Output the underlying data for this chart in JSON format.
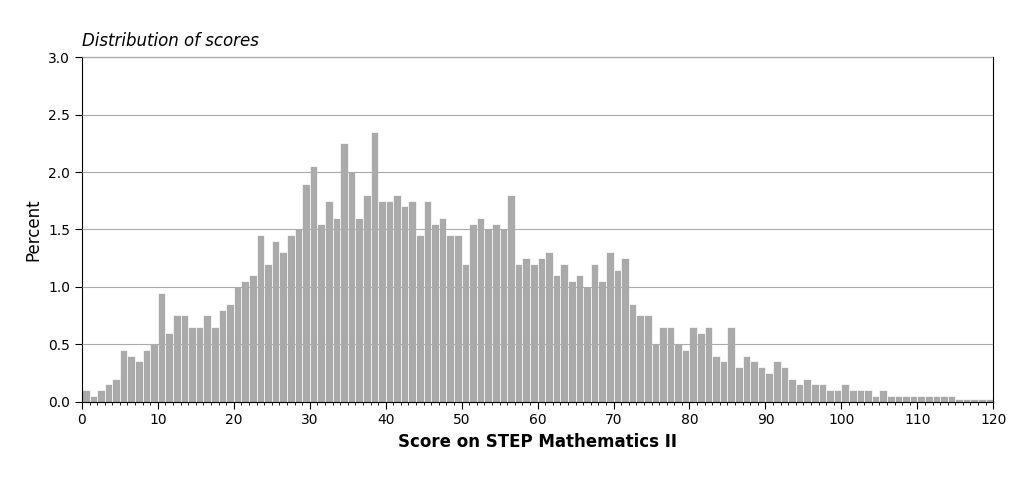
{
  "title": "Distribution of scores",
  "xlabel": "Score on STEP Mathematics II",
  "ylabel": "Percent",
  "bar_color": "#aaaaaa",
  "bar_edgecolor": "#ffffff",
  "xlim": [
    0,
    120
  ],
  "ylim": [
    0,
    3.0
  ],
  "xticks": [
    0,
    10,
    20,
    30,
    40,
    50,
    60,
    70,
    80,
    90,
    100,
    110,
    120
  ],
  "yticks": [
    0.0,
    0.5,
    1.0,
    1.5,
    2.0,
    2.5,
    3.0
  ],
  "title_fontsize": 12,
  "label_fontsize": 12,
  "tick_fontsize": 10,
  "percents": [
    0.1,
    0.05,
    0.1,
    0.15,
    0.2,
    0.45,
    0.4,
    0.35,
    0.45,
    0.5,
    0.95,
    0.6,
    0.75,
    0.75,
    0.65,
    0.65,
    0.75,
    0.65,
    0.8,
    0.85,
    1.0,
    1.05,
    1.1,
    1.45,
    1.2,
    1.4,
    1.3,
    1.45,
    1.5,
    1.9,
    2.05,
    1.55,
    1.75,
    1.6,
    2.25,
    2.0,
    1.6,
    1.8,
    2.35,
    1.75,
    1.75,
    1.8,
    1.7,
    1.75,
    1.45,
    1.75,
    1.55,
    1.6,
    1.45,
    1.45,
    1.2,
    1.55,
    1.6,
    1.5,
    1.55,
    1.5,
    1.8,
    1.2,
    1.25,
    1.2,
    1.25,
    1.3,
    1.1,
    1.2,
    1.05,
    1.1,
    1.0,
    1.2,
    1.05,
    1.3,
    1.15,
    1.25,
    0.85,
    0.75,
    0.75,
    0.5,
    0.65,
    0.65,
    0.5,
    0.45,
    0.65,
    0.6,
    0.65,
    0.4,
    0.35,
    0.65,
    0.3,
    0.4,
    0.35,
    0.3,
    0.25,
    0.35,
    0.3,
    0.2,
    0.15,
    0.2,
    0.15,
    0.15,
    0.1,
    0.1,
    0.15,
    0.1,
    0.1,
    0.1,
    0.05,
    0.1,
    0.05,
    0.05,
    0.05,
    0.05,
    0.05,
    0.05,
    0.05,
    0.05,
    0.05,
    0.02,
    0.02,
    0.02,
    0.02,
    0.02
  ]
}
